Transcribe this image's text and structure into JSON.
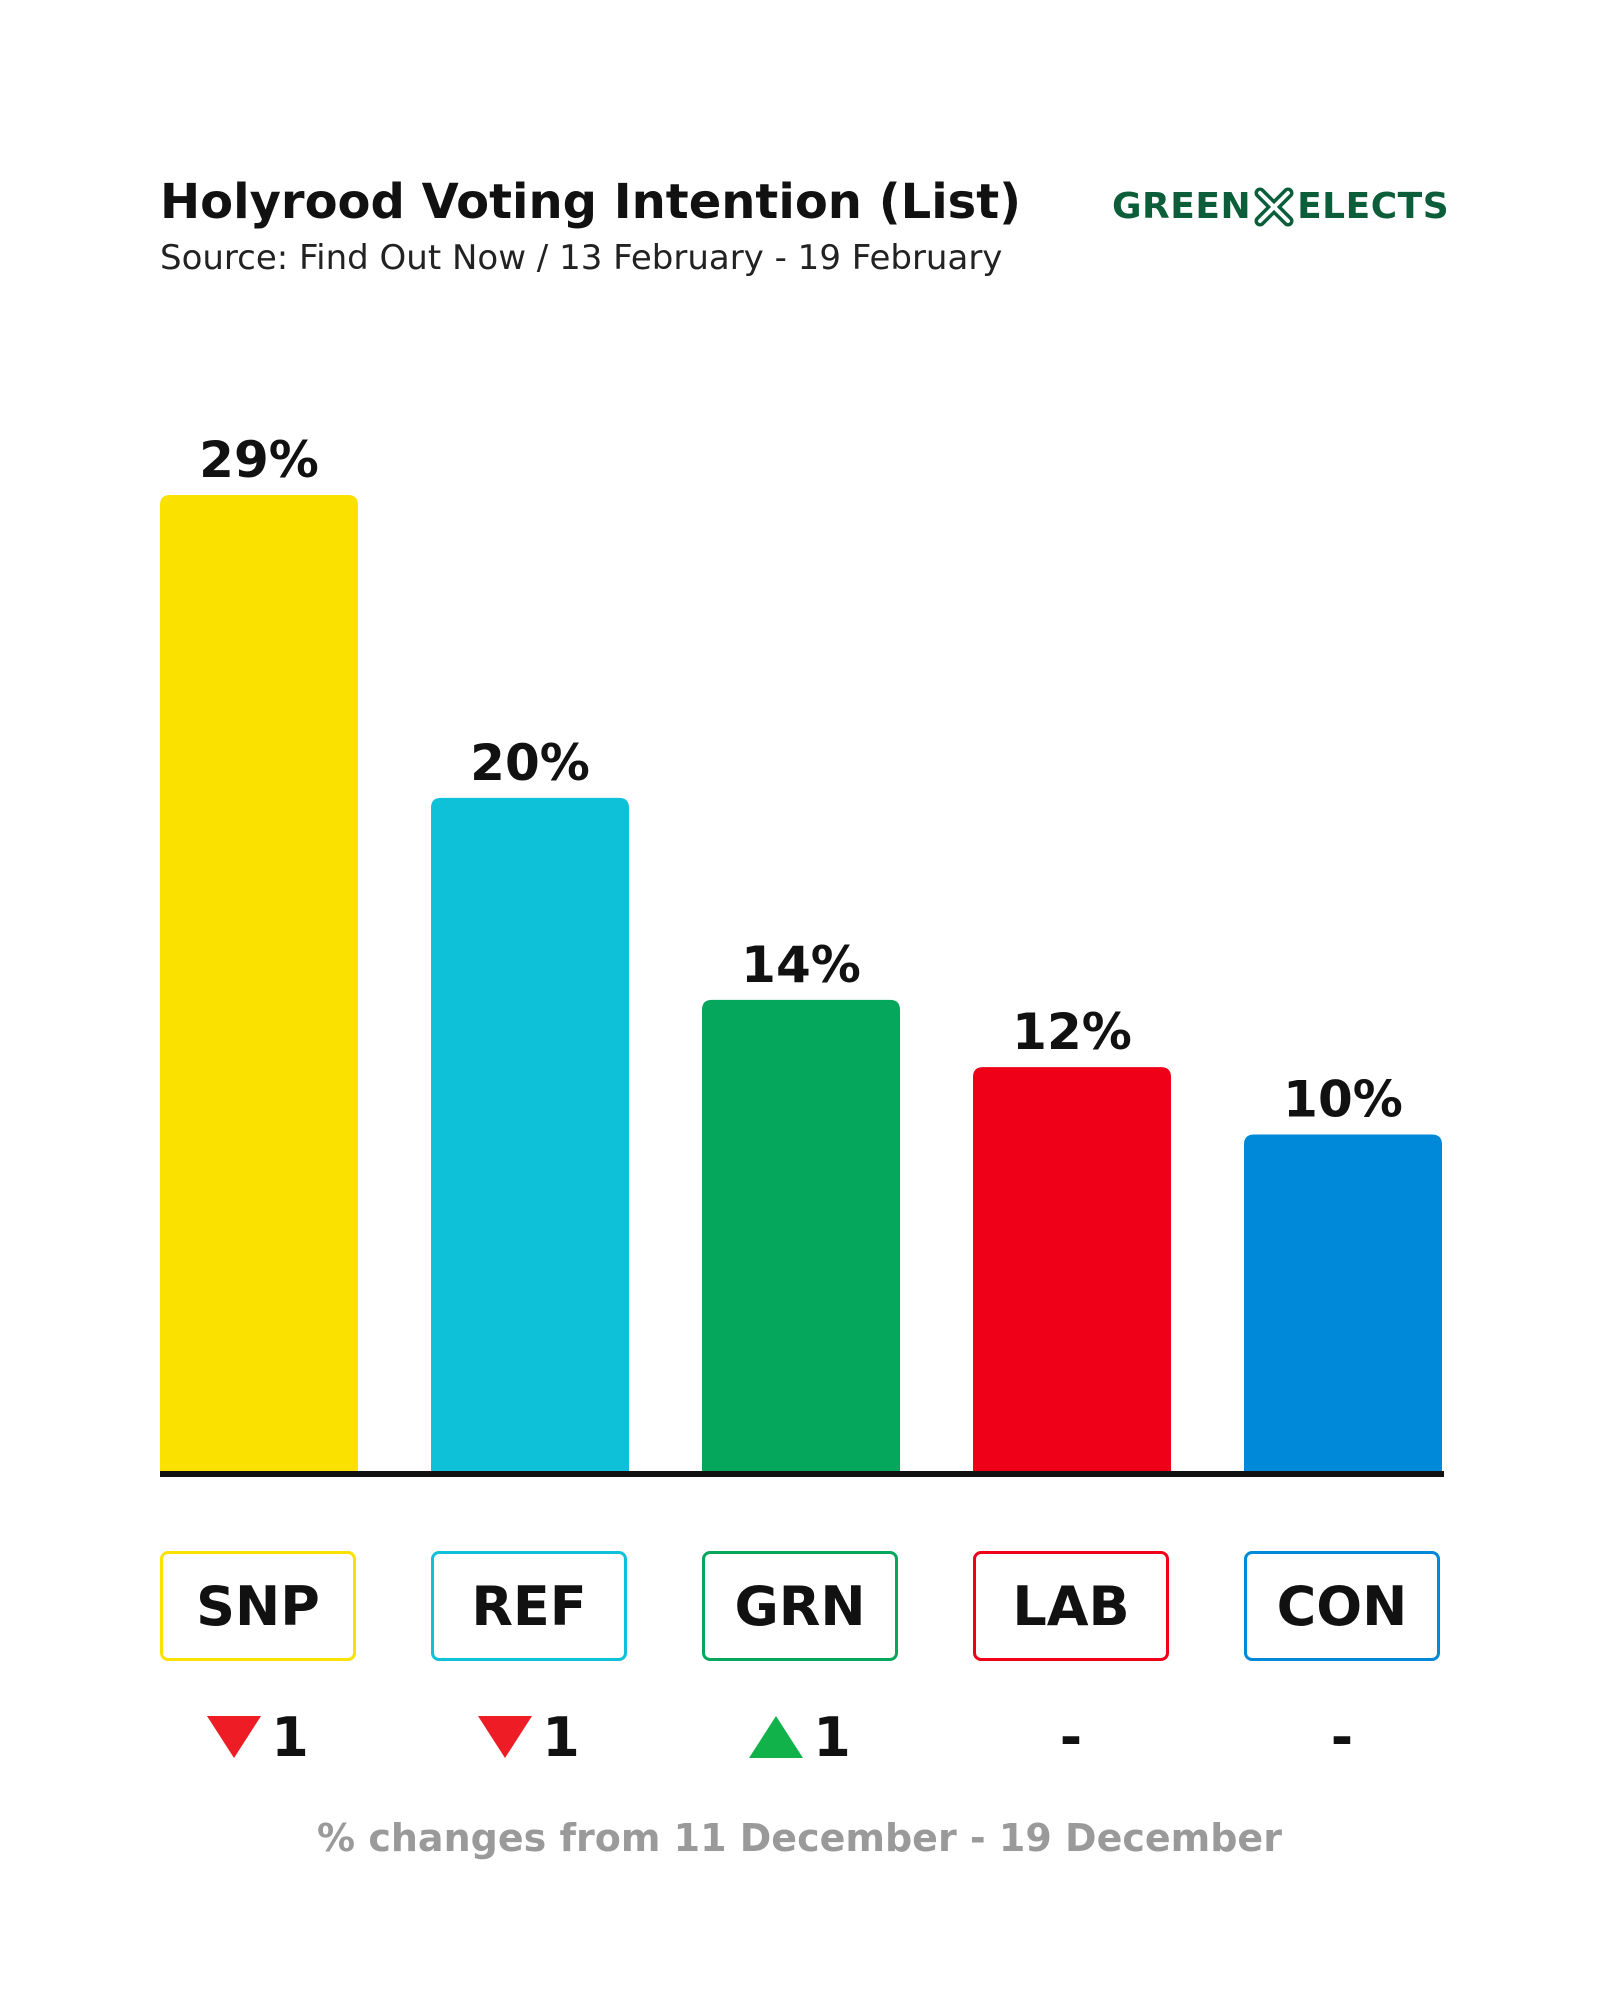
{
  "title": "Holyrood Voting Intention (List)",
  "subtitle": "Source: Find Out Now / 13 February - 19 February",
  "logo": {
    "left": "GREEN",
    "right": "ELECTS",
    "color": "#0b5e39"
  },
  "footnote": "% changes from 11 December - 19 December",
  "chart_data": {
    "type": "bar",
    "title": "Holyrood Voting Intention (List)",
    "subtitle": "Source: Find Out Now / 13 February - 19 February",
    "categories": [
      "SNP",
      "REF",
      "GRN",
      "LAB",
      "CON"
    ],
    "values": [
      29,
      20,
      14,
      12,
      10
    ],
    "labels": [
      "29%",
      "20%",
      "14%",
      "12%",
      "10%"
    ],
    "colors": [
      "#fae100",
      "#0fc0d9",
      "#04a75b",
      "#f00018",
      "#0088d9"
    ],
    "changes": [
      {
        "direction": "down",
        "text": "1"
      },
      {
        "direction": "down",
        "text": "1"
      },
      {
        "direction": "up",
        "text": "1"
      },
      {
        "direction": "none",
        "text": "-"
      },
      {
        "direction": "none",
        "text": "-"
      }
    ],
    "change_colors": {
      "down": "#ee1c25",
      "up": "#12b24b"
    },
    "ylim": [
      0,
      29
    ],
    "grid": false,
    "legend": "none"
  }
}
